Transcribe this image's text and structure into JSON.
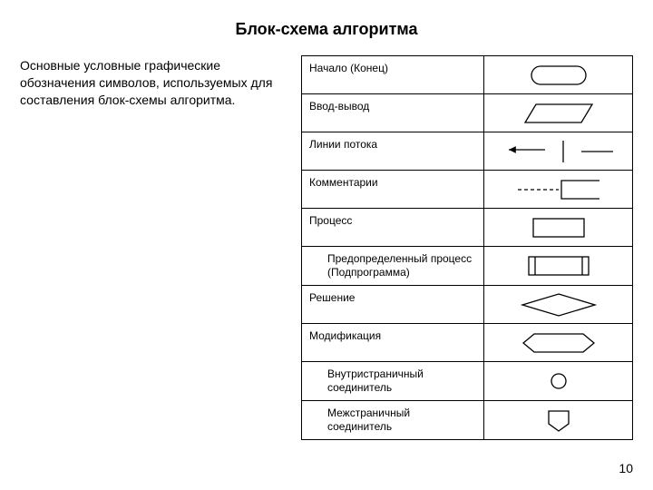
{
  "title": "Блок-схема алгоритма",
  "description": "Основные условные графические обозначения символов, используемых для составления блок-схемы алгоритма.",
  "page_number": "10",
  "stroke_color": "#000000",
  "fill_color": "#ffffff",
  "rows": [
    {
      "label": "Начало (Конец)",
      "shape": "terminator",
      "indent": false
    },
    {
      "label": "Ввод-вывод",
      "shape": "io",
      "indent": false
    },
    {
      "label": "Линии потока",
      "shape": "flowlines",
      "indent": false
    },
    {
      "label": "Комментарии",
      "shape": "comment",
      "indent": false
    },
    {
      "label": "Процесс",
      "shape": "process",
      "indent": false
    },
    {
      "label": "Предопределенный процесс (Подпрограмма)",
      "shape": "predefined",
      "indent": true
    },
    {
      "label": "Решение",
      "shape": "decision",
      "indent": false
    },
    {
      "label": "Модификация",
      "shape": "preparation",
      "indent": false
    },
    {
      "label": "Внутристраничный соединитель",
      "shape": "connector",
      "indent": true
    },
    {
      "label": "Межстраничный соединитель",
      "shape": "offpage",
      "indent": true
    }
  ]
}
